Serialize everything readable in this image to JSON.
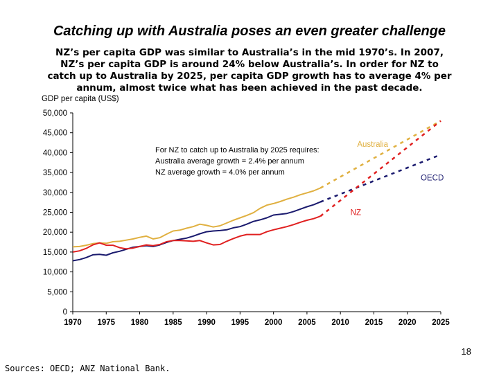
{
  "slide": {
    "title": "Catching up with Australia poses an even greater challenge",
    "subtitle_lines": [
      "NZ’s per capita GDP was similar to Australia’s in the mid 1970’s.  In 2007,",
      "NZ’s per capita GDP is around 24% below Australia’s.  In order for NZ to",
      "catch up to Australia by 2025, per capita GDP growth has to average 4% per",
      "annum, almost twice what has been achieved in the past decade."
    ],
    "page_number": "18",
    "sources": "Sources: OECD; ANZ National Bank."
  },
  "chart_data": {
    "type": "line",
    "ylabel": "GDP per capita (US$)",
    "xlabel": "",
    "xlim": [
      1970,
      2025
    ],
    "ylim": [
      0,
      50000
    ],
    "x_ticks": [
      1970,
      1975,
      1980,
      1985,
      1990,
      1995,
      2000,
      2005,
      2010,
      2015,
      2020,
      2025
    ],
    "y_ticks": [
      0,
      5000,
      10000,
      15000,
      20000,
      25000,
      30000,
      35000,
      40000,
      45000,
      50000
    ],
    "y_tick_labels": [
      "0",
      "5,000",
      "10,000",
      "15,000",
      "20,000",
      "25,000",
      "30,000",
      "35,000",
      "40,000",
      "45,000",
      "50,000"
    ],
    "grid": false,
    "annotation": [
      "For NZ to catch up to Australia by 2025 requires:",
      "Australia average growth = 2.4% per annum",
      "NZ average growth = 4.0% per annum"
    ],
    "series": [
      {
        "name": "Australia",
        "color": "#e0b040",
        "label_position": "near-2015",
        "actual": {
          "x": [
            1970,
            1971,
            1972,
            1973,
            1974,
            1975,
            1976,
            1977,
            1978,
            1979,
            1980,
            1981,
            1982,
            1983,
            1984,
            1985,
            1986,
            1987,
            1988,
            1989,
            1990,
            1991,
            1992,
            1993,
            1994,
            1995,
            1996,
            1997,
            1998,
            1999,
            2000,
            2001,
            2002,
            2003,
            2004,
            2005,
            2006,
            2007
          ],
          "y": [
            16300,
            16400,
            16700,
            17100,
            17300,
            17200,
            17600,
            17700,
            18000,
            18300,
            18700,
            19000,
            18300,
            18600,
            19500,
            20300,
            20500,
            21000,
            21400,
            22000,
            21700,
            21300,
            21600,
            22300,
            23000,
            23600,
            24200,
            24900,
            26000,
            26800,
            27200,
            27700,
            28300,
            28800,
            29400,
            29900,
            30400,
            31100
          ]
        },
        "projection": {
          "x": [
            2007,
            2025
          ],
          "y": [
            31100,
            48000
          ]
        }
      },
      {
        "name": "OECD",
        "color": "#1a1a6e",
        "label_position": "right",
        "actual": {
          "x": [
            1970,
            1971,
            1972,
            1973,
            1974,
            1975,
            1976,
            1977,
            1978,
            1979,
            1980,
            1981,
            1982,
            1983,
            1984,
            1985,
            1986,
            1987,
            1988,
            1989,
            1990,
            1991,
            1992,
            1993,
            1994,
            1995,
            1996,
            1997,
            1998,
            1999,
            2000,
            2001,
            2002,
            2003,
            2004,
            2005,
            2006,
            2007
          ],
          "y": [
            12800,
            13100,
            13600,
            14300,
            14400,
            14200,
            14800,
            15200,
            15700,
            16200,
            16400,
            16600,
            16400,
            16800,
            17400,
            17900,
            18200,
            18500,
            19000,
            19600,
            20100,
            20300,
            20400,
            20600,
            21100,
            21400,
            22000,
            22700,
            23100,
            23600,
            24300,
            24500,
            24700,
            25200,
            25800,
            26400,
            26900,
            27600
          ]
        },
        "projection": {
          "x": [
            2007,
            2025
          ],
          "y": [
            27600,
            39500
          ]
        }
      },
      {
        "name": "NZ",
        "color": "#e02020",
        "label_position": "near-2010",
        "actual": {
          "x": [
            1970,
            1971,
            1972,
            1973,
            1974,
            1975,
            1976,
            1977,
            1978,
            1979,
            1980,
            1981,
            1982,
            1983,
            1984,
            1985,
            1986,
            1987,
            1988,
            1989,
            1990,
            1991,
            1992,
            1993,
            1994,
            1995,
            1996,
            1997,
            1998,
            1999,
            2000,
            2001,
            2002,
            2003,
            2004,
            2005,
            2006,
            2007
          ],
          "y": [
            15000,
            15300,
            15900,
            16800,
            17300,
            16700,
            16700,
            16100,
            15800,
            16000,
            16400,
            16800,
            16600,
            16900,
            17600,
            17900,
            17900,
            17800,
            17700,
            17900,
            17300,
            16800,
            16900,
            17700,
            18400,
            19000,
            19400,
            19400,
            19400,
            20100,
            20600,
            21000,
            21400,
            21900,
            22500,
            23000,
            23400,
            24000
          ]
        },
        "projection": {
          "x": [
            2007,
            2025
          ],
          "y": [
            24000,
            48000
          ]
        }
      }
    ]
  }
}
